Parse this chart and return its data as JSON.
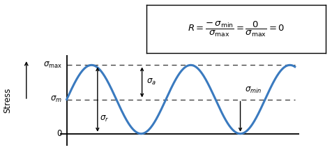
{
  "sigma_max": 1.0,
  "sigma_min": 0.0,
  "sigma_m": 0.5,
  "amplitude": 0.5,
  "mean": 0.5,
  "curve_color": "#3a7abf",
  "curve_linewidth": 2.2,
  "dashed_color": "#444444",
  "background_color": "#ffffff",
  "figsize": [
    4.77,
    2.38
  ],
  "dpi": 100,
  "arrow_color": "black",
  "arrow_lw": 1.0,
  "label_fontsize": 8.5
}
